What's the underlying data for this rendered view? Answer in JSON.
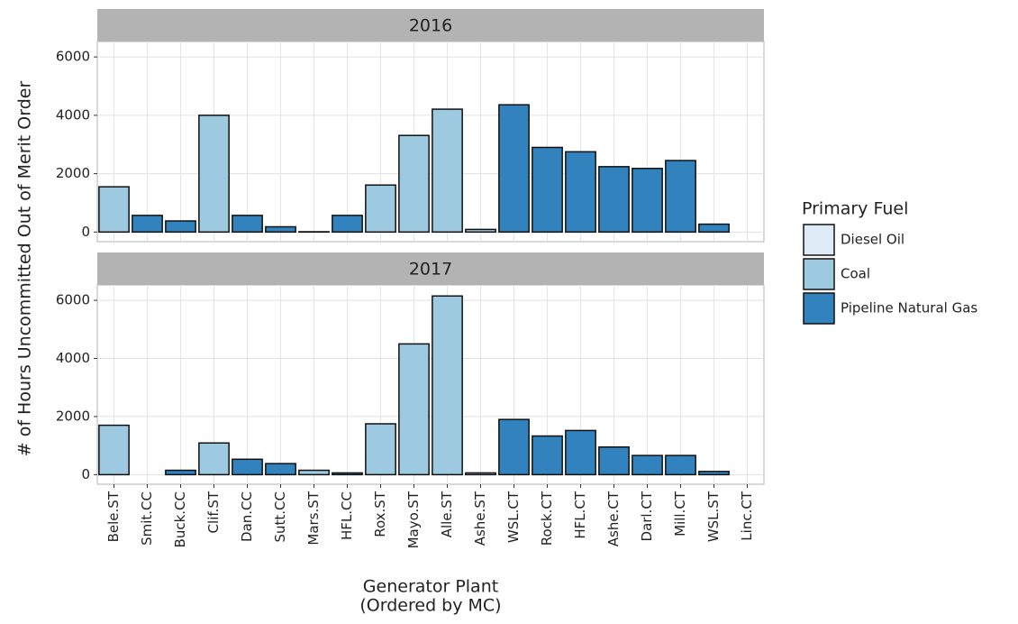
{
  "chart_data": {
    "type": "bar",
    "ylabel": "# of Hours Uncommitted Out of Merit Order",
    "xlabel": [
      "Generator Plant",
      "(Ordered by MC)"
    ],
    "categories": [
      "Bele.ST",
      "Smit.CC",
      "Buck.CC",
      "Clif.ST",
      "Dan.CC",
      "Sutt.CC",
      "Mars.ST",
      "HFL.CC",
      "Rox.ST",
      "Mayo.ST",
      "Alle.ST",
      "Ashe.ST",
      "WSL.CT",
      "Rock.CT",
      "HFL.CT",
      "Ashe.CT",
      "Darl.CT",
      "Mill.CT",
      "WSL.ST",
      "Linc.CT"
    ],
    "ylim": [
      -330,
      6530
    ],
    "yticks": [
      0,
      2000,
      4000,
      6000
    ],
    "grid": true,
    "legend": {
      "title": "Primary Fuel",
      "position": "right",
      "items": [
        {
          "name": "Diesel Oil",
          "color": "#deebf7"
        },
        {
          "name": "Coal",
          "color": "#9ecae1"
        },
        {
          "name": "Pipeline Natural Gas",
          "color": "#3182bd"
        }
      ]
    },
    "panels": [
      {
        "title": "2016",
        "values": [
          1550,
          570,
          380,
          4000,
          570,
          180,
          10,
          570,
          1610,
          3310,
          4210,
          90,
          4360,
          2900,
          2750,
          2240,
          2180,
          2450,
          270,
          0
        ],
        "fuels": [
          "Coal",
          "Pipeline Natural Gas",
          "Pipeline Natural Gas",
          "Coal",
          "Pipeline Natural Gas",
          "Pipeline Natural Gas",
          "Coal",
          "Pipeline Natural Gas",
          "Coal",
          "Coal",
          "Coal",
          "Coal",
          "Pipeline Natural Gas",
          "Pipeline Natural Gas",
          "Pipeline Natural Gas",
          "Pipeline Natural Gas",
          "Pipeline Natural Gas",
          "Pipeline Natural Gas",
          "Pipeline Natural Gas",
          "Pipeline Natural Gas"
        ]
      },
      {
        "title": "2017",
        "values": [
          1700,
          0,
          150,
          1090,
          530,
          380,
          150,
          60,
          1750,
          4500,
          6150,
          60,
          1900,
          1330,
          1520,
          950,
          660,
          660,
          110,
          0
        ],
        "fuels": [
          "Coal",
          "Pipeline Natural Gas",
          "Pipeline Natural Gas",
          "Coal",
          "Pipeline Natural Gas",
          "Pipeline Natural Gas",
          "Coal",
          "Pipeline Natural Gas",
          "Coal",
          "Coal",
          "Coal",
          "Coal",
          "Pipeline Natural Gas",
          "Pipeline Natural Gas",
          "Pipeline Natural Gas",
          "Pipeline Natural Gas",
          "Pipeline Natural Gas",
          "Pipeline Natural Gas",
          "Pipeline Natural Gas",
          "Pipeline Natural Gas"
        ]
      }
    ]
  }
}
